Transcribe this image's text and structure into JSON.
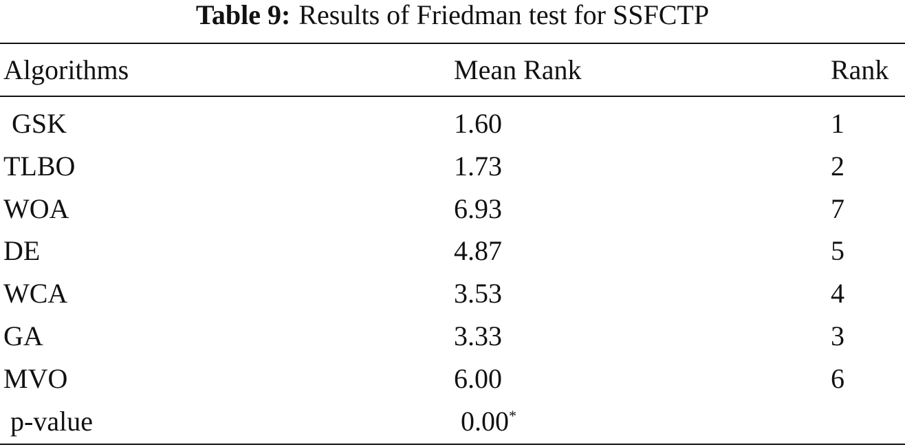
{
  "caption": {
    "label": "Table 9:",
    "text": "Results of Friedman test for SSFCTP"
  },
  "table": {
    "header": [
      "Algorithms",
      "Mean Rank",
      "Rank"
    ],
    "rows": [
      [
        "GSK",
        "1.60",
        1
      ],
      [
        "TLBO",
        "1.73",
        2
      ],
      [
        "WOA",
        "6.93",
        7
      ],
      [
        "DE",
        "4.87",
        5
      ],
      [
        "WCA",
        "3.53",
        4
      ],
      [
        "GA",
        "3.33",
        3
      ],
      [
        "MVO",
        "6.00",
        6
      ]
    ],
    "footer": {
      "label": "p-value",
      "value": "0.00",
      "mark": "*"
    }
  }
}
